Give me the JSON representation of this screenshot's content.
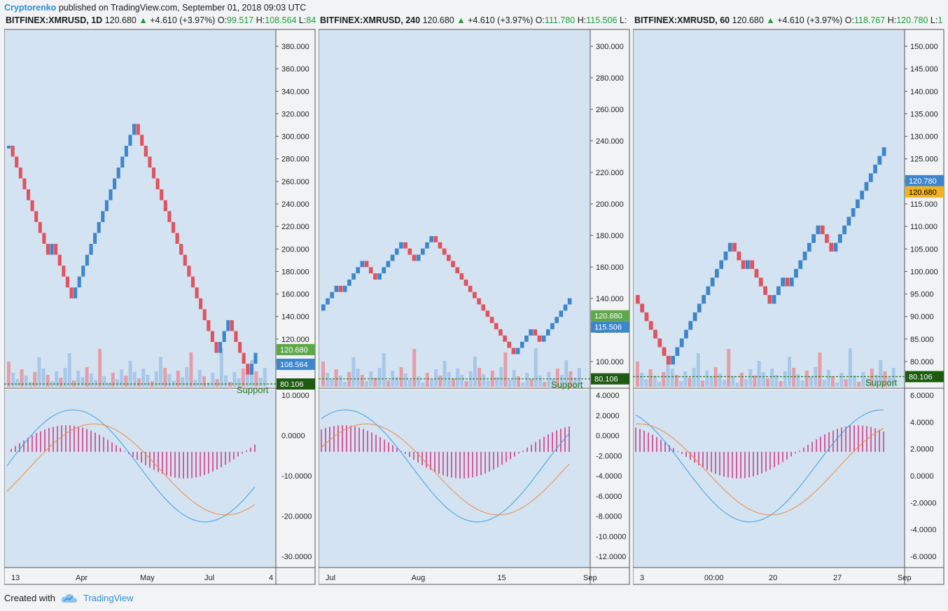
{
  "header": {
    "author": "Cryptorenko",
    "published": "published on TradingView.com, September 01, 2018 09:03 UTC"
  },
  "footer": {
    "created_with": "Created with",
    "brand": "TradingView"
  },
  "colors": {
    "up_brick": "#3d86cc",
    "down_brick": "#e2525e",
    "macd_hist": "#d2136a",
    "macd_line": "#3aa0e8",
    "signal_line": "#f08a3c",
    "support": "#2a7d1a",
    "pane_bg": "#d4e3f2"
  },
  "panels": [
    {
      "symbol": "BITFINEX:XMRUSD, 1D",
      "last": "120.680",
      "change": "+4.610 (+3.97%)",
      "o": "99.517",
      "h": "108.564",
      "l": "84",
      "price_ticks": [
        "380.000",
        "360.000",
        "340.000",
        "320.000",
        "300.000",
        "280.000",
        "260.000",
        "240.000",
        "220.000",
        "200.000",
        "180.000",
        "160.000",
        "140.000",
        "120.000",
        "100.000"
      ],
      "price_tags": [
        {
          "label": "120.680",
          "color": "#5fa84a"
        },
        {
          "label": "108.564",
          "color": "#3d86cc"
        },
        {
          "label": "80.106",
          "color": "#1f5a12"
        }
      ],
      "macd_ticks": [
        "10.0000",
        "0.0000",
        "-10.0000",
        "-20.0000",
        "-30.0000"
      ],
      "time_ticks": [
        "13",
        "Apr",
        "May",
        "Jul",
        "4"
      ],
      "support_label": "Support",
      "chart_data": {
        "type": "renko",
        "title": "BITFINEX:XMRUSD, 1D",
        "ylim": [
          90,
          385
        ],
        "brick_size": 9,
        "bricks": [
          0,
          -1,
          -1,
          -1,
          -1,
          -1,
          -1,
          -1,
          -1,
          -1,
          -1,
          1,
          -1,
          -1,
          -1,
          -1,
          -1,
          1,
          1,
          1,
          1,
          1,
          1,
          1,
          1,
          1,
          1,
          1,
          1,
          1,
          1,
          1,
          1,
          -1,
          -1,
          -1,
          -1,
          -1,
          -1,
          -1,
          -1,
          -1,
          -1,
          -1,
          -1,
          -1,
          -1,
          -1,
          -1,
          -1,
          -1,
          -1,
          -1,
          -1,
          1,
          1,
          1,
          -1,
          -1,
          -1,
          -1,
          -1,
          1,
          1
        ],
        "start_price": 289,
        "support": 80.106,
        "last": 120.68,
        "high_line": 108.564
      }
    },
    {
      "symbol": "BITFINEX:XMRUSD, 240",
      "last": "120.680",
      "change": "+4.610 (+3.97%)",
      "o": "111.780",
      "h": "115.506",
      "l": "",
      "price_ticks": [
        "300.000",
        "280.000",
        "260.000",
        "240.000",
        "220.000",
        "200.000",
        "180.000",
        "160.000",
        "140.000",
        "120.000",
        "100.000"
      ],
      "price_tags": [
        {
          "label": "120.680",
          "color": "#5fa84a"
        },
        {
          "label": "115.506",
          "color": "#3d86cc"
        },
        {
          "label": "80.106",
          "color": "#1f5a12"
        }
      ],
      "macd_ticks": [
        "4.0000",
        "2.0000",
        "0.0000",
        "-2.0000",
        "-4.0000",
        "-6.0000",
        "-8.0000",
        "-10.0000",
        "-12.0000"
      ],
      "time_ticks": [
        "Jul",
        "Aug",
        "15",
        "Sep"
      ],
      "support_label": "Support",
      "chart_data": {
        "type": "renko",
        "title": "BITFINEX:XMRUSD, 240",
        "ylim": [
          75,
          305
        ],
        "brick_size": 4,
        "bricks": [
          1,
          1,
          1,
          1,
          -1,
          1,
          1,
          1,
          1,
          1,
          -1,
          -1,
          -1,
          1,
          1,
          1,
          1,
          1,
          1,
          -1,
          -1,
          -1,
          1,
          1,
          1,
          1,
          -1,
          -1,
          -1,
          -1,
          -1,
          -1,
          -1,
          -1,
          -1,
          -1,
          -1,
          -1,
          -1,
          -1,
          -1,
          -1,
          -1,
          -1,
          -1,
          1,
          1,
          1,
          1,
          -1,
          -1,
          1,
          1,
          1,
          1,
          1,
          1,
          1
        ],
        "start_price": 124,
        "support": 80.106,
        "last": 120.68,
        "high_line": 115.506
      }
    },
    {
      "symbol": "BITFINEX:XMRUSD, 60",
      "last": "120.680",
      "change": "+4.610 (+3.97%)",
      "o": "118.767",
      "h": "120.780",
      "l": "1",
      "price_ticks": [
        "150.000",
        "145.000",
        "140.000",
        "135.000",
        "130.000",
        "125.000",
        "120.000",
        "115.000",
        "110.000",
        "105.000",
        "100.000",
        "95.000",
        "90.000",
        "85.000",
        "80.000"
      ],
      "price_tags": [
        {
          "label": "120.780",
          "color": "#3d86cc"
        },
        {
          "label": "120.680",
          "color": "#f2b21c",
          "dark": true
        },
        {
          "label": "80.106",
          "color": "#1f5a12"
        }
      ],
      "macd_ticks": [
        "6.0000",
        "4.0000",
        "2.0000",
        "0.0000",
        "-2.0000",
        "-4.0000",
        "-6.0000"
      ],
      "time_ticks": [
        "3",
        "00:00",
        "20",
        "27",
        "Sep"
      ],
      "support_label": "Support",
      "chart_data": {
        "type": "renko",
        "title": "BITFINEX:XMRUSD, 60",
        "ylim": [
          78,
          152
        ],
        "brick_size": 1.8,
        "bricks": [
          -1,
          -1,
          -1,
          -1,
          -1,
          -1,
          -1,
          -1,
          1,
          1,
          1,
          1,
          1,
          1,
          1,
          1,
          1,
          1,
          1,
          1,
          1,
          1,
          -1,
          -1,
          -1,
          1,
          -1,
          -1,
          -1,
          -1,
          -1,
          1,
          1,
          1,
          -1,
          1,
          1,
          1,
          1,
          1,
          1,
          1,
          -1,
          -1,
          -1,
          1,
          1,
          1,
          1,
          1,
          1,
          1,
          1,
          1,
          1,
          1,
          1
        ],
        "start_price": 97,
        "support": 80.106,
        "last": 120.68,
        "high_line": 120.78
      }
    }
  ]
}
